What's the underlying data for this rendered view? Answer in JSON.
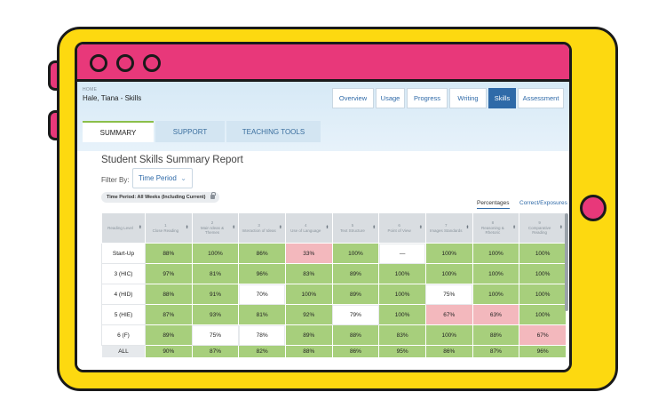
{
  "crumb": "HOME",
  "student": "Hale, Tiana - Skills",
  "nav": [
    "Overview",
    "Usage",
    "Progress",
    "Writing",
    "Skills",
    "Assessment"
  ],
  "tabs": [
    "SUMMARY",
    "SUPPORT",
    "TEACHING TOOLS"
  ],
  "report_title": "Student Skills Summary Report",
  "filter_label": "Filter By:",
  "filter_value": "Time Period",
  "time_period_pill": "Time Period: All Weeks (Including Current)",
  "view_toggle": [
    "Percentages",
    "Correct/Exposures"
  ],
  "table": {
    "headers": [
      {
        "num": "",
        "label": "Reading Level"
      },
      {
        "num": "1",
        "label": "Close Reading"
      },
      {
        "num": "2",
        "label": "Main Ideas & Themes"
      },
      {
        "num": "3",
        "label": "Interaction of Ideas"
      },
      {
        "num": "4",
        "label": "Use of Language"
      },
      {
        "num": "5",
        "label": "Text Structure"
      },
      {
        "num": "6",
        "label": "Point of View"
      },
      {
        "num": "7",
        "label": "Images Standards"
      },
      {
        "num": "8",
        "label": "Reasoning & Rhetoric"
      },
      {
        "num": "9",
        "label": "Comparative Reading"
      }
    ],
    "rows": [
      {
        "level": "Start-Up",
        "cells": [
          {
            "v": "88%",
            "c": "g"
          },
          {
            "v": "100%",
            "c": "g"
          },
          {
            "v": "86%",
            "c": "g"
          },
          {
            "v": "33%",
            "c": "r"
          },
          {
            "v": "100%",
            "c": "g"
          },
          {
            "v": "—",
            "c": "w"
          },
          {
            "v": "100%",
            "c": "g"
          },
          {
            "v": "100%",
            "c": "g"
          },
          {
            "v": "100%",
            "c": "g"
          }
        ]
      },
      {
        "level": "3 (HIC)",
        "cells": [
          {
            "v": "97%",
            "c": "g"
          },
          {
            "v": "81%",
            "c": "g"
          },
          {
            "v": "96%",
            "c": "g"
          },
          {
            "v": "83%",
            "c": "g"
          },
          {
            "v": "89%",
            "c": "g"
          },
          {
            "v": "100%",
            "c": "g"
          },
          {
            "v": "100%",
            "c": "g"
          },
          {
            "v": "100%",
            "c": "g"
          },
          {
            "v": "100%",
            "c": "g"
          }
        ]
      },
      {
        "level": "4 (HID)",
        "cells": [
          {
            "v": "88%",
            "c": "g"
          },
          {
            "v": "91%",
            "c": "g"
          },
          {
            "v": "70%",
            "c": "w"
          },
          {
            "v": "100%",
            "c": "g"
          },
          {
            "v": "89%",
            "c": "g"
          },
          {
            "v": "100%",
            "c": "g"
          },
          {
            "v": "75%",
            "c": "w"
          },
          {
            "v": "100%",
            "c": "g"
          },
          {
            "v": "100%",
            "c": "g"
          }
        ]
      },
      {
        "level": "5 (HIE)",
        "cells": [
          {
            "v": "87%",
            "c": "g"
          },
          {
            "v": "93%",
            "c": "g"
          },
          {
            "v": "81%",
            "c": "g"
          },
          {
            "v": "92%",
            "c": "g"
          },
          {
            "v": "79%",
            "c": "w"
          },
          {
            "v": "100%",
            "c": "g"
          },
          {
            "v": "67%",
            "c": "r"
          },
          {
            "v": "63%",
            "c": "r"
          },
          {
            "v": "100%",
            "c": "g"
          }
        ]
      },
      {
        "level": "6 (F)",
        "cells": [
          {
            "v": "89%",
            "c": "g"
          },
          {
            "v": "75%",
            "c": "w"
          },
          {
            "v": "78%",
            "c": "w"
          },
          {
            "v": "89%",
            "c": "g"
          },
          {
            "v": "88%",
            "c": "g"
          },
          {
            "v": "83%",
            "c": "g"
          },
          {
            "v": "100%",
            "c": "g"
          },
          {
            "v": "88%",
            "c": "g"
          },
          {
            "v": "67%",
            "c": "r"
          }
        ]
      },
      {
        "level": "ALL",
        "cells": [
          {
            "v": "90%",
            "c": "g"
          },
          {
            "v": "87%",
            "c": "g"
          },
          {
            "v": "82%",
            "c": "g"
          },
          {
            "v": "88%",
            "c": "g"
          },
          {
            "v": "86%",
            "c": "g"
          },
          {
            "v": "95%",
            "c": "g"
          },
          {
            "v": "86%",
            "c": "g"
          },
          {
            "v": "87%",
            "c": "g"
          },
          {
            "v": "96%",
            "c": "g"
          }
        ]
      }
    ]
  },
  "colors": {
    "tablet_frame": "#fdd910",
    "accent_pink": "#e8387a",
    "cell_green": "#a7cf7c",
    "cell_red": "#f3b8bd",
    "link_blue": "#2f6aa8"
  }
}
